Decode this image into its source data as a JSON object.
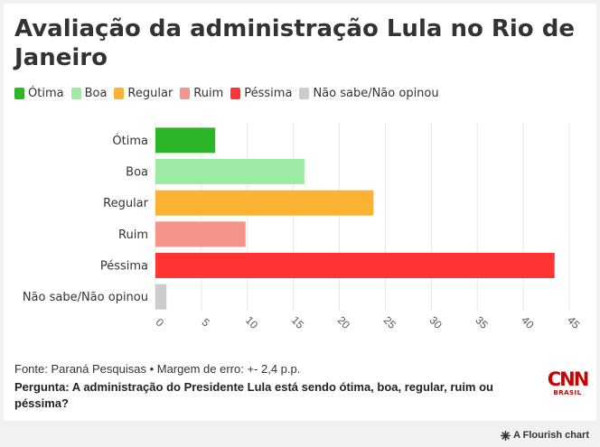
{
  "title": "Avaliação da administração Lula no Rio de Janeiro",
  "chart_data": {
    "type": "bar",
    "orientation": "horizontal",
    "categories": [
      "Ótima",
      "Boa",
      "Regular",
      "Ruim",
      "Péssima",
      "Não sabe/Não opinou"
    ],
    "values": [
      6.5,
      16.2,
      23.7,
      9.8,
      43.4,
      1.2
    ],
    "colors": [
      "#2db52a",
      "#9deaa4",
      "#fbb233",
      "#f59489",
      "#ff3434",
      "#cccccc"
    ],
    "xlim": [
      0,
      45
    ],
    "ticks": [
      "0",
      "5",
      "10",
      "15",
      "20",
      "25",
      "30",
      "35",
      "40",
      "45"
    ],
    "grid": true,
    "legend": [
      {
        "label": "Ótima",
        "color": "#2db52a"
      },
      {
        "label": "Boa",
        "color": "#9deaa4"
      },
      {
        "label": "Regular",
        "color": "#fbb233"
      },
      {
        "label": "Ruim",
        "color": "#f59489"
      },
      {
        "label": "Péssima",
        "color": "#ff3434"
      },
      {
        "label": "Não sabe/Não opinou",
        "color": "#cccccc"
      }
    ]
  },
  "footer": {
    "source": "Fonte: Paraná Pesquisas • Margem de erro: +- 2,4 p.p.",
    "question": "Pergunta: A administração do Presidente Lula está sendo ótima, boa, regular, ruim ou péssima?"
  },
  "logo": {
    "name": "CNN",
    "sub": "BRASIL"
  },
  "credit": {
    "icon": "flourish-icon",
    "text": "A Flourish chart"
  }
}
